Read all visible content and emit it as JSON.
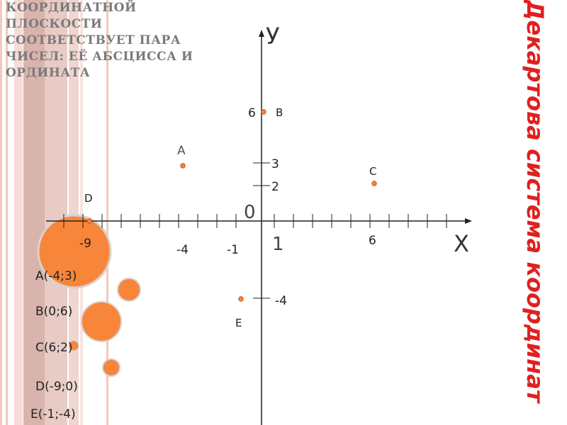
{
  "heading_lines": [
    "КООРДИНАТНОЙ",
    "ПЛОСКОСТИ",
    "СООТВЕТСТВУЕТ ПАРА",
    "ЧИСЕЛ: ЕЁ АБСЦИССА И",
    "ОРДИНАТА"
  ],
  "vertical_title": "Декартова система координат",
  "axes": {
    "x_name": "Х",
    "y_name": "У",
    "origin_label": "0",
    "unit_label": "1",
    "x_tick_labels": [
      "-9",
      "-4",
      "-1",
      "6"
    ],
    "y_tick_labels": [
      "6",
      "3",
      "2",
      "-4"
    ]
  },
  "points": [
    {
      "name": "A",
      "x": -4,
      "y": 3
    },
    {
      "name": "B",
      "x": 0,
      "y": 6
    },
    {
      "name": "C",
      "x": 6,
      "y": 2
    },
    {
      "name": "D",
      "x": -9,
      "y": 0
    },
    {
      "name": "E",
      "x": -1,
      "y": -4
    }
  ],
  "coordinate_list": [
    "A(-4;3)",
    "B(0;6)",
    "C(6;2)",
    "D(-9;0)",
    "E(-1;-4)"
  ],
  "colors": {
    "accent": "#f7863b",
    "point_stroke": "#c0551a",
    "title_red": "#e02020",
    "stripe": "#e8c4bc"
  }
}
